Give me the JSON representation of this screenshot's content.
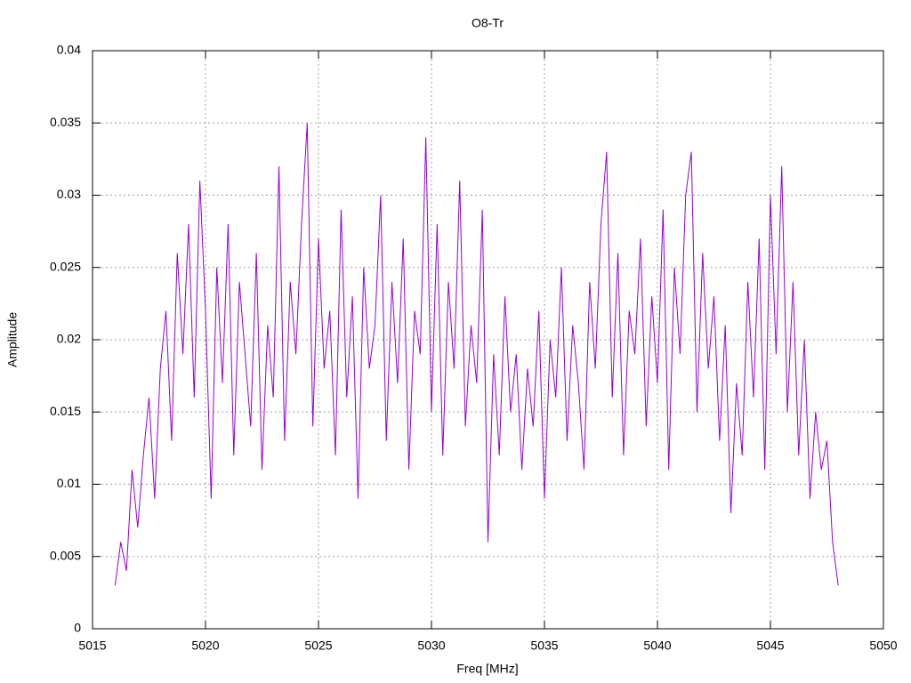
{
  "chart_data": {
    "type": "line",
    "title": "O8-Tr",
    "x_label": "Freq [MHz]",
    "y_label": "Amplitude",
    "color": "#9400d3",
    "grid": true,
    "xlim": [
      5015,
      5050
    ],
    "xticks": [
      5015,
      5020,
      5025,
      5030,
      5035,
      5040,
      5045,
      5050
    ],
    "ylim": [
      0,
      0.04
    ],
    "yticks": [
      0,
      0.005,
      0.01,
      0.015,
      0.02,
      0.025,
      0.03,
      0.035,
      0.04
    ],
    "x": [
      5016,
      5016.25,
      5016.5,
      5016.75,
      5017,
      5017.25,
      5017.5,
      5017.75,
      5018,
      5018.25,
      5018.5,
      5018.75,
      5019,
      5019.25,
      5019.5,
      5019.75,
      5020,
      5020.25,
      5020.5,
      5020.75,
      5021,
      5021.25,
      5021.5,
      5021.75,
      5022,
      5022.25,
      5022.5,
      5022.75,
      5023,
      5023.25,
      5023.5,
      5023.75,
      5024,
      5024.25,
      5024.5,
      5024.75,
      5025,
      5025.25,
      5025.5,
      5025.75,
      5026,
      5026.25,
      5026.5,
      5026.75,
      5027,
      5027.25,
      5027.5,
      5027.75,
      5028,
      5028.25,
      5028.5,
      5028.75,
      5029,
      5029.25,
      5029.5,
      5029.75,
      5030,
      5030.25,
      5030.5,
      5030.75,
      5031,
      5031.25,
      5031.5,
      5031.75,
      5032,
      5032.25,
      5032.5,
      5032.75,
      5033,
      5033.25,
      5033.5,
      5033.75,
      5034,
      5034.25,
      5034.5,
      5034.75,
      5035,
      5035.25,
      5035.5,
      5035.75,
      5036,
      5036.25,
      5036.5,
      5036.75,
      5037,
      5037.25,
      5037.5,
      5037.75,
      5038,
      5038.25,
      5038.5,
      5038.75,
      5039,
      5039.25,
      5039.5,
      5039.75,
      5040,
      5040.25,
      5040.5,
      5040.75,
      5041,
      5041.25,
      5041.5,
      5041.75,
      5042,
      5042.25,
      5042.5,
      5042.75,
      5043,
      5043.25,
      5043.5,
      5043.75,
      5044,
      5044.25,
      5044.5,
      5044.75,
      5045,
      5045.25,
      5045.5,
      5045.75,
      5046,
      5046.25,
      5046.5,
      5046.75,
      5047,
      5047.25,
      5047.5,
      5047.75,
      5048
    ],
    "values": [
      0.003,
      0.006,
      0.004,
      0.011,
      0.007,
      0.012,
      0.016,
      0.009,
      0.018,
      0.022,
      0.013,
      0.026,
      0.019,
      0.028,
      0.016,
      0.031,
      0.022,
      0.009,
      0.025,
      0.017,
      0.028,
      0.012,
      0.024,
      0.019,
      0.014,
      0.026,
      0.011,
      0.021,
      0.016,
      0.032,
      0.013,
      0.024,
      0.019,
      0.028,
      0.035,
      0.014,
      0.027,
      0.018,
      0.022,
      0.012,
      0.029,
      0.016,
      0.023,
      0.009,
      0.025,
      0.018,
      0.021,
      0.03,
      0.013,
      0.024,
      0.017,
      0.027,
      0.011,
      0.022,
      0.019,
      0.034,
      0.015,
      0.028,
      0.012,
      0.024,
      0.018,
      0.031,
      0.014,
      0.021,
      0.017,
      0.029,
      0.006,
      0.019,
      0.012,
      0.023,
      0.015,
      0.019,
      0.011,
      0.018,
      0.014,
      0.022,
      0.009,
      0.02,
      0.016,
      0.025,
      0.013,
      0.021,
      0.017,
      0.011,
      0.024,
      0.018,
      0.028,
      0.033,
      0.016,
      0.026,
      0.012,
      0.022,
      0.019,
      0.027,
      0.014,
      0.023,
      0.017,
      0.029,
      0.011,
      0.025,
      0.019,
      0.03,
      0.033,
      0.015,
      0.026,
      0.018,
      0.023,
      0.013,
      0.021,
      0.008,
      0.017,
      0.012,
      0.024,
      0.016,
      0.027,
      0.011,
      0.03,
      0.019,
      0.032,
      0.015,
      0.024,
      0.012,
      0.02,
      0.009,
      0.015,
      0.011,
      0.013,
      0.006,
      0.003
    ]
  }
}
